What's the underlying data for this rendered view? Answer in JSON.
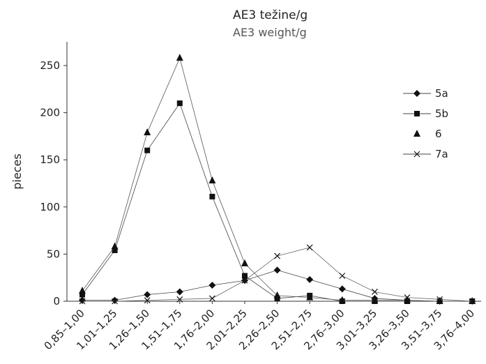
{
  "chart_data": {
    "type": "line",
    "title": "AE3  težine/g",
    "subtitle": "AE3 weight/g",
    "xlabel": "",
    "ylabel": "pieces",
    "categories": [
      "0,85–1,00",
      "1,01–1,25",
      "1,26–1,50",
      "1,51–1,75",
      "1,76–2,00",
      "2,01–2,25",
      "2,26–2,50",
      "2,51–2,75",
      "2,76–3,00",
      "3,01–3,25",
      "3,26–3,50",
      "3,51–3,75",
      "3,76–4,00"
    ],
    "ylim": [
      0,
      270
    ],
    "yticks": [
      0,
      50,
      100,
      150,
      200,
      250
    ],
    "grid": false,
    "legend_position": "right",
    "series": [
      {
        "name": "5a",
        "marker": "diamond",
        "values": [
          1,
          1,
          7,
          10,
          17,
          22,
          33,
          23,
          13,
          3,
          1,
          0,
          0
        ]
      },
      {
        "name": "5b",
        "marker": "square",
        "values": [
          7,
          54,
          160,
          210,
          111,
          27,
          3,
          6,
          0,
          0,
          0,
          0,
          0
        ]
      },
      {
        "name": "6",
        "marker": "triangle",
        "values": [
          11,
          58,
          179,
          258,
          128,
          40,
          6,
          4,
          1,
          1,
          1,
          0,
          0
        ]
      },
      {
        "name": "7a",
        "marker": "x",
        "values": [
          0,
          0,
          1,
          2,
          3,
          22,
          48,
          57,
          27,
          10,
          4,
          2,
          0
        ]
      }
    ]
  }
}
